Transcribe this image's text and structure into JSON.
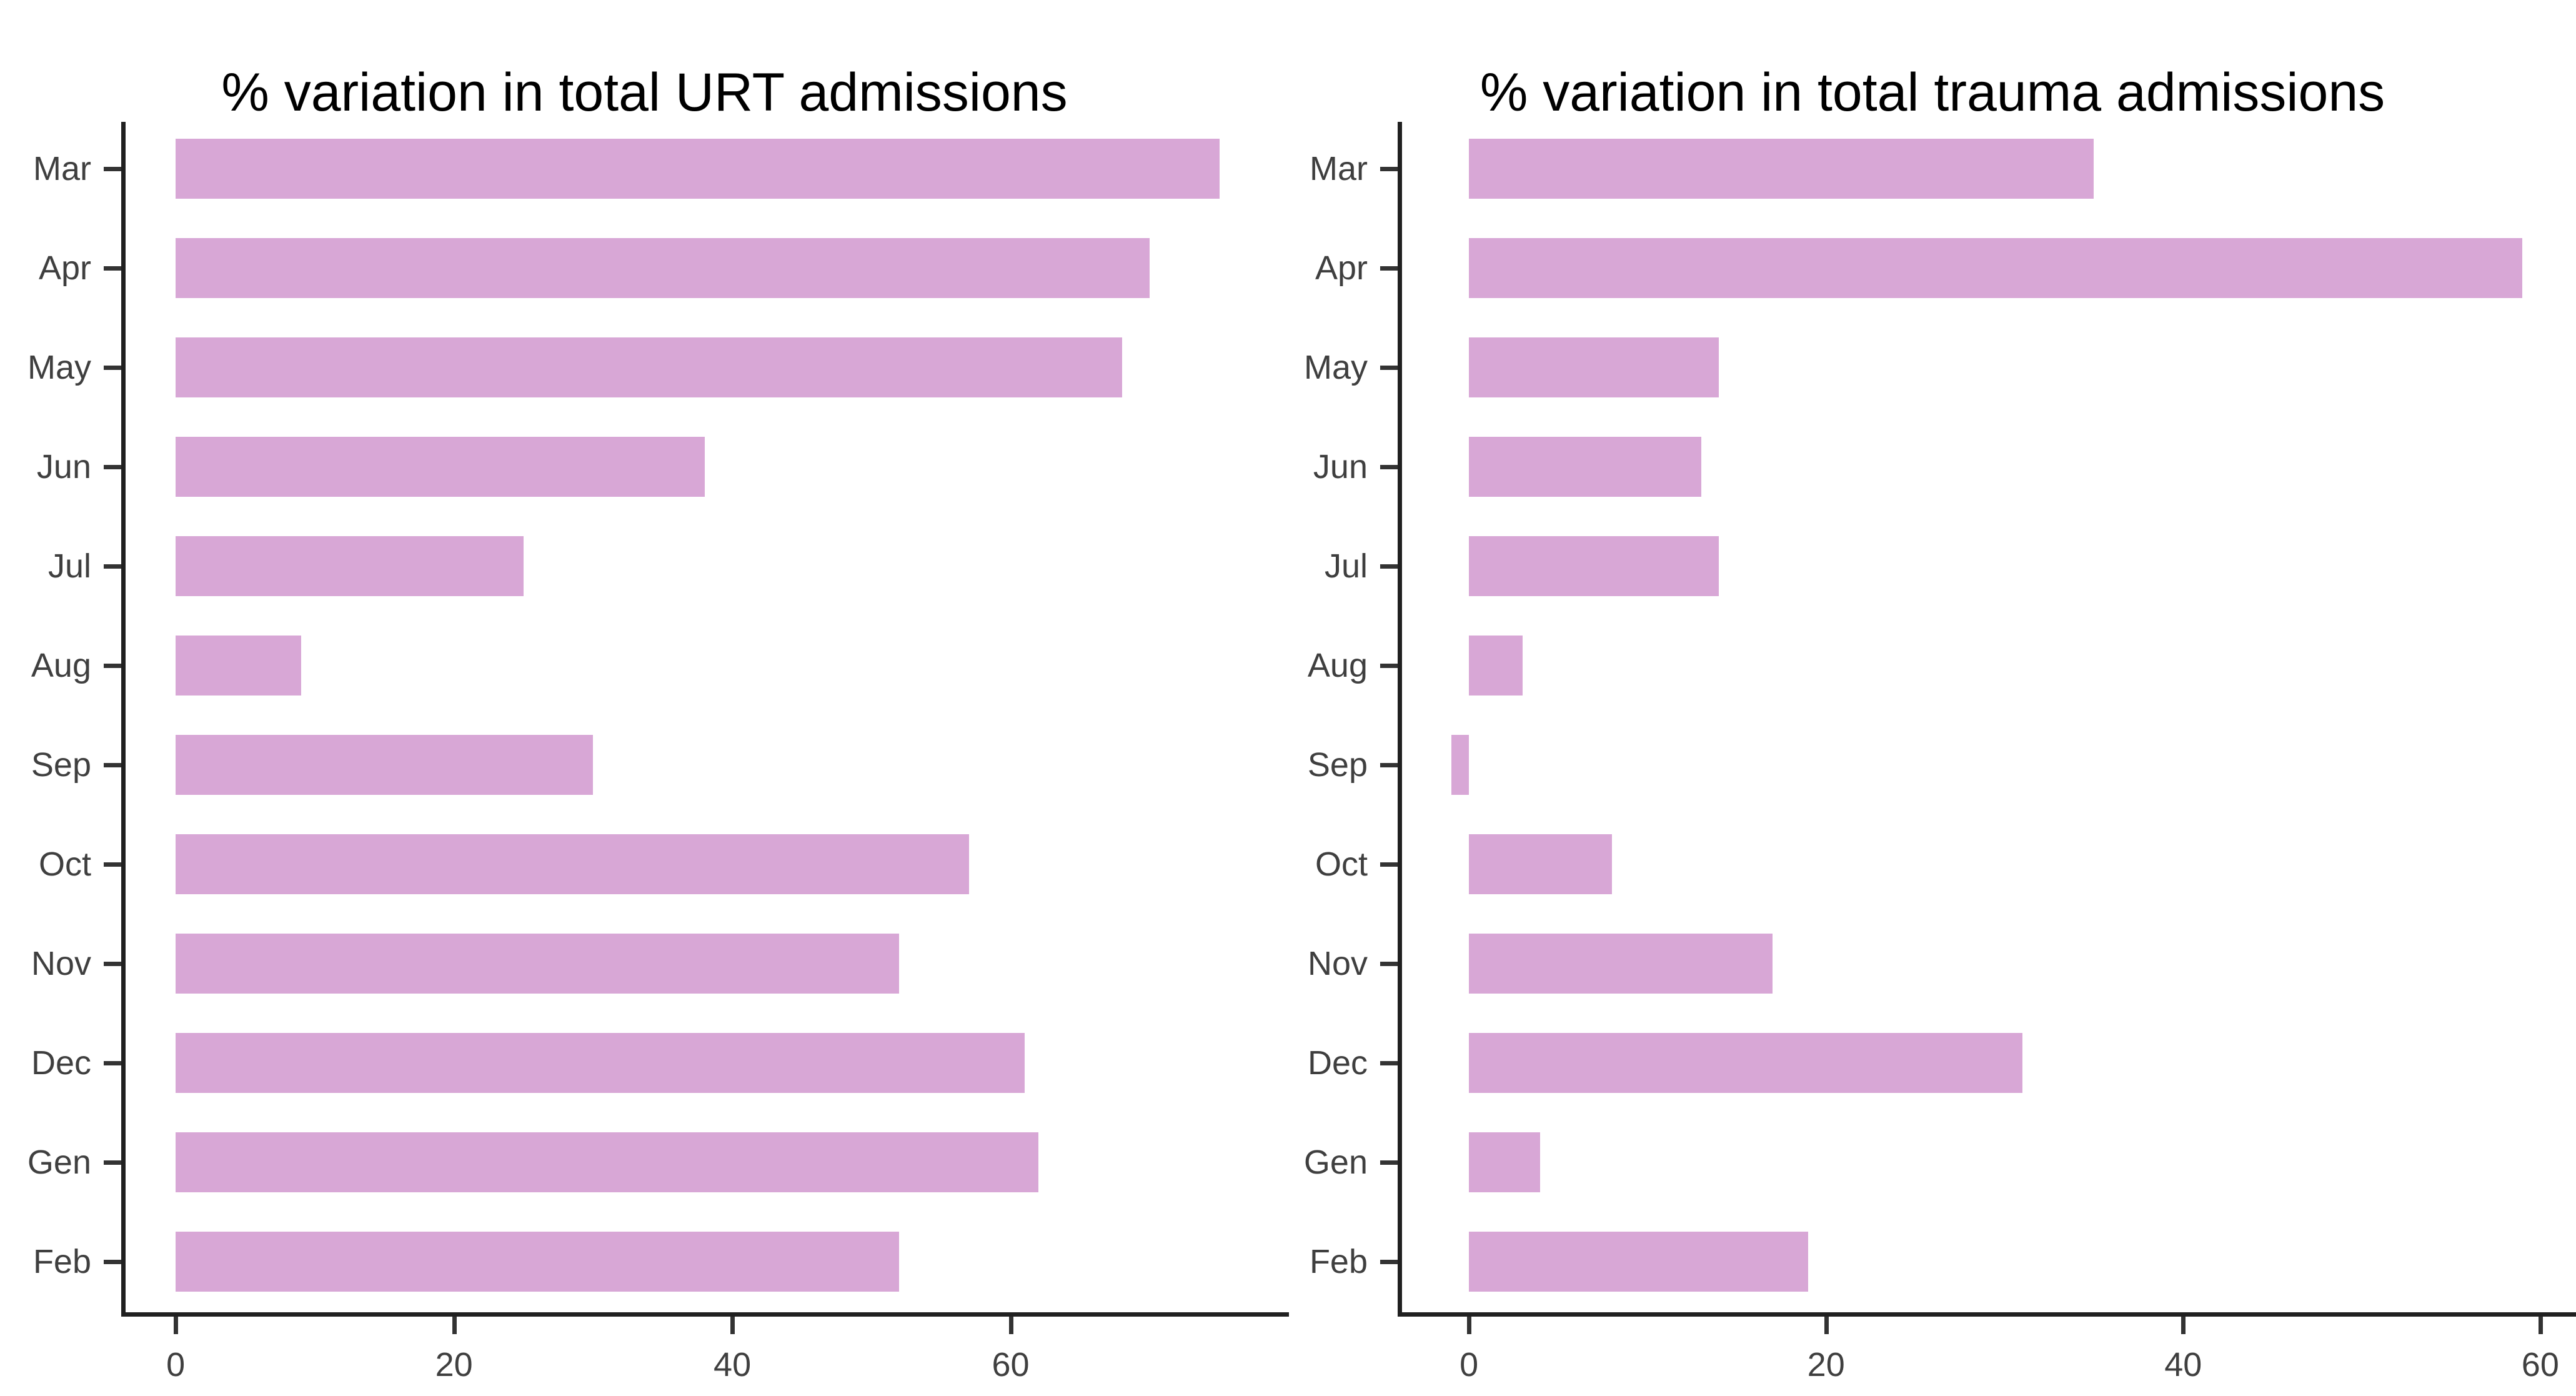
{
  "figure": {
    "background": "#ffffff",
    "bar_color": "#d8a7d6",
    "axis_color": "#202020",
    "tick_color": "#333333",
    "tick_label_color": "#3f3f3f",
    "title_color": "#000000"
  },
  "chart_data": [
    {
      "id": "urt",
      "type": "bar",
      "orientation": "horizontal",
      "title": "% variation in total URT admissions",
      "categories": [
        "Mar",
        "Apr",
        "May",
        "Jun",
        "Jul",
        "Aug",
        "Sep",
        "Oct",
        "Nov",
        "Dec",
        "Gen",
        "Feb"
      ],
      "values": [
        75,
        70,
        68,
        38,
        25,
        9,
        30,
        57,
        52,
        61,
        62,
        52
      ],
      "xlabel": "",
      "ylabel": "",
      "xticks": [
        0,
        20,
        40,
        60
      ],
      "xlim": [
        -3.6,
        80
      ],
      "grid": false,
      "legend": false
    },
    {
      "id": "trauma",
      "type": "bar",
      "orientation": "horizontal",
      "title": "% variation in total trauma admissions",
      "categories": [
        "Mar",
        "Apr",
        "May",
        "Jun",
        "Jul",
        "Aug",
        "Sep",
        "Oct",
        "Nov",
        "Dec",
        "Gen",
        "Feb"
      ],
      "values": [
        35,
        59,
        14,
        13,
        14,
        3,
        -1,
        8,
        17,
        31,
        4,
        19
      ],
      "xlabel": "",
      "ylabel": "",
      "xticks": [
        0,
        20,
        40,
        60
      ],
      "xlim": [
        -3.75,
        62
      ],
      "grid": false,
      "legend": false
    }
  ]
}
